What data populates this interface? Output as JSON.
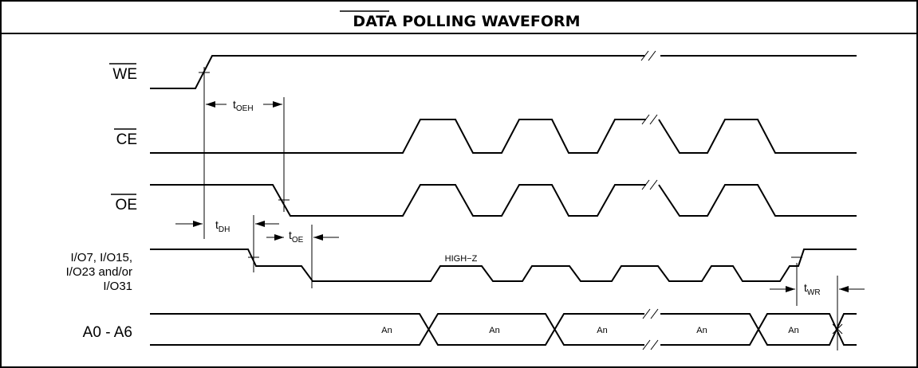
{
  "title": "DATA POLLING WAVEFORM",
  "signals": {
    "we": "WE",
    "ce": "CE",
    "oe": "OE",
    "io_line1": "I/O7, I/O15,",
    "io_line2": "I/O23 and/or",
    "io_line3": "I/O31",
    "addr": "A0 - A6"
  },
  "timing": {
    "toeh": {
      "t": "t",
      "sub": "OEH"
    },
    "tdh": {
      "t": "t",
      "sub": "DH"
    },
    "toe": {
      "t": "t",
      "sub": "OE"
    },
    "twr": {
      "t": "t",
      "sub": "WR"
    }
  },
  "annotations": {
    "highz": "HIGH−Z",
    "an": "An"
  }
}
